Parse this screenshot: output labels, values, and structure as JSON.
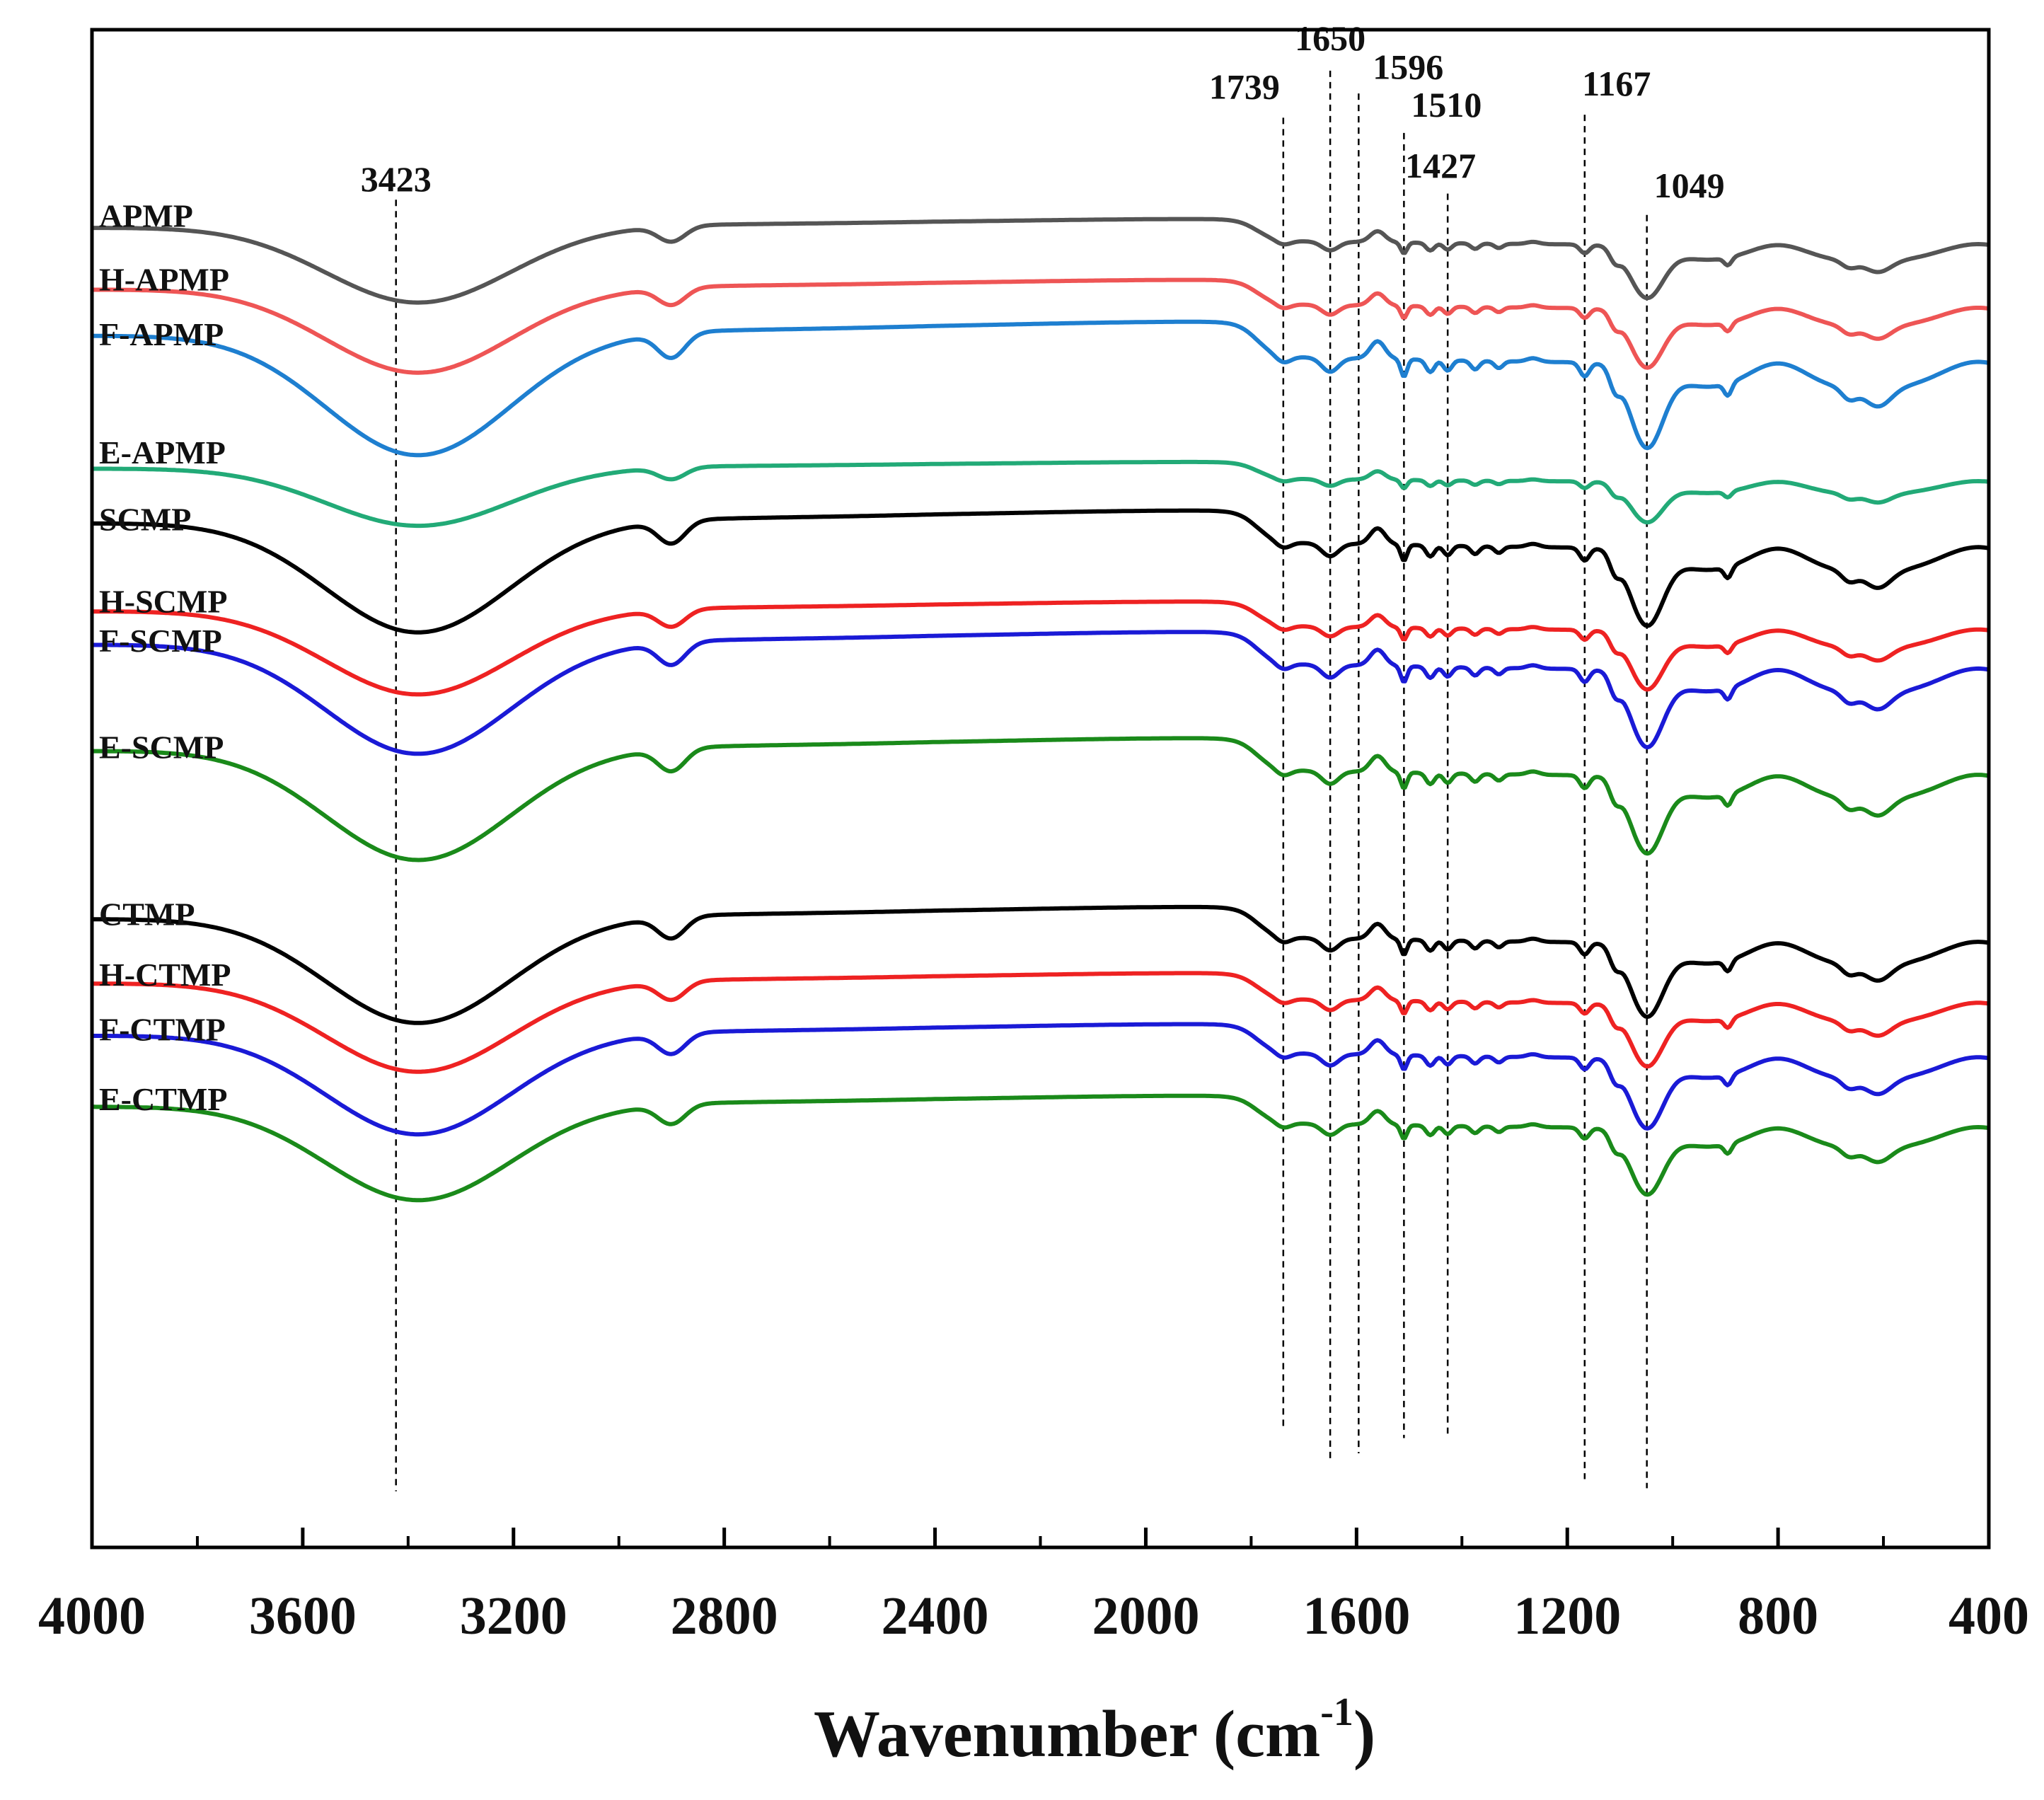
{
  "chart_data": {
    "type": "line",
    "title": "",
    "xlabel": "Wavenumber (cm",
    "xlabel_sup": "-1",
    "xlabel_close": ")",
    "ylabel": "",
    "x_reversed": true,
    "xlim": [
      4000,
      400
    ],
    "ylim": [
      0,
      1
    ],
    "x_ticks": [
      "4000",
      "3600",
      "3200",
      "2800",
      "2400",
      "2000",
      "1600",
      "1200",
      "800",
      "400"
    ],
    "grid": false,
    "peak_markers": [
      {
        "x": 3423,
        "label": "3423"
      },
      {
        "x": 1739,
        "label": "1739"
      },
      {
        "x": 1650,
        "label": "1650"
      },
      {
        "x": 1596,
        "label": "1596"
      },
      {
        "x": 1510,
        "label": "1510"
      },
      {
        "x": 1427,
        "label": "1427"
      },
      {
        "x": 1167,
        "label": "1167"
      },
      {
        "x": 1049,
        "label": "1049"
      }
    ],
    "series": [
      {
        "name": "APMP",
        "color": "#555555",
        "offset": 0.858,
        "scale": 0.72
      },
      {
        "name": "H-APMP",
        "color": "#ee5555",
        "offset": 0.816,
        "scale": 0.8
      },
      {
        "name": "F-APMP",
        "color": "#1e7fd0",
        "offset": 0.78,
        "scale": 1.15
      },
      {
        "name": "E-APMP",
        "color": "#22aa77",
        "offset": 0.702,
        "scale": 0.55
      },
      {
        "name": "SCMP",
        "color": "#000000",
        "offset": 0.658,
        "scale": 1.05
      },
      {
        "name": "H-SCMP",
        "color": "#ee2222",
        "offset": 0.604,
        "scale": 0.8
      },
      {
        "name": "F-SCMP",
        "color": "#1a1ad6",
        "offset": 0.578,
        "scale": 1.05
      },
      {
        "name": "E-SCMP",
        "color": "#1a8a1a",
        "offset": 0.508,
        "scale": 1.05
      },
      {
        "name": "CTMP",
        "color": "#000000",
        "offset": 0.398,
        "scale": 1.0
      },
      {
        "name": "H-CTMP",
        "color": "#ee2222",
        "offset": 0.358,
        "scale": 0.85
      },
      {
        "name": "F-CTMP",
        "color": "#1a1ad6",
        "offset": 0.322,
        "scale": 0.95
      },
      {
        "name": "E-CTMP",
        "color": "#1a8a1a",
        "offset": 0.276,
        "scale": 0.9
      }
    ]
  }
}
